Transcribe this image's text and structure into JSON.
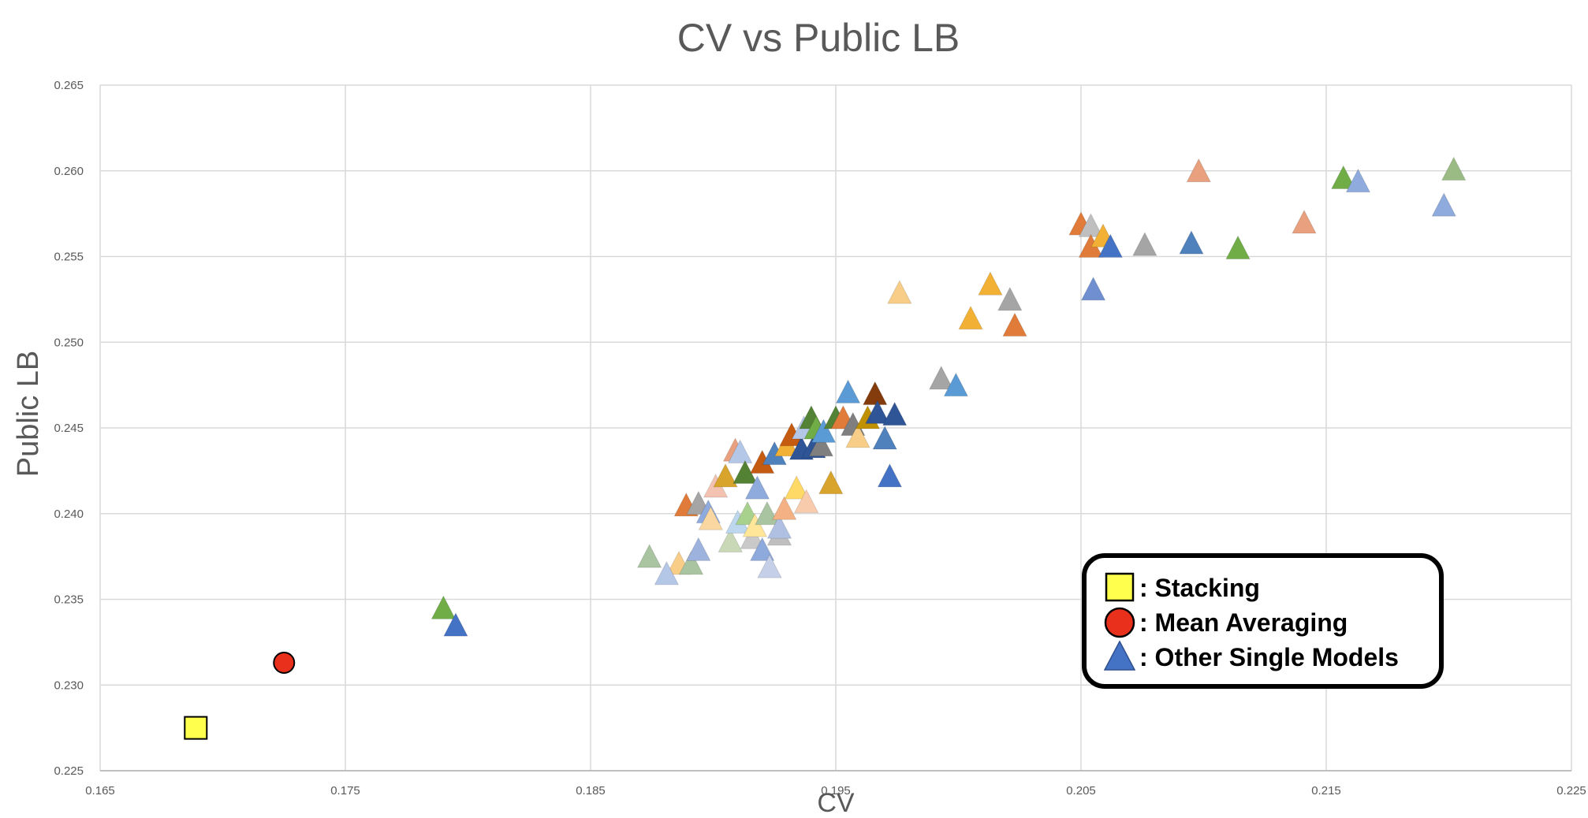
{
  "chart_data": {
    "type": "scatter",
    "title": "CV vs Public LB",
    "xlabel": "CV",
    "ylabel": "Public LB",
    "xlim": [
      0.165,
      0.225
    ],
    "ylim": [
      0.225,
      0.265
    ],
    "x_ticks": [
      "0.165",
      "0.175",
      "0.185",
      "0.195",
      "0.205",
      "0.215",
      "0.225"
    ],
    "y_ticks": [
      "0.225",
      "0.230",
      "0.235",
      "0.240",
      "0.245",
      "0.250",
      "0.255",
      "0.260",
      "0.265"
    ],
    "grid": true,
    "legend": {
      "placement": "bottom-right",
      "entries": [
        {
          "marker": "square",
          "color": "#FFFF4D",
          "label": ": Stacking"
        },
        {
          "marker": "circle",
          "color": "#E8301C",
          "label": ": Mean Averaging"
        },
        {
          "marker": "triangle",
          "color": "#4472C4",
          "label": ": Other Single Models"
        }
      ]
    },
    "series": [
      {
        "name": ": Stacking",
        "marker": "square",
        "color": "#FFFF4D",
        "points": [
          {
            "x": 0.1689,
            "y": 0.2275
          }
        ]
      },
      {
        "name": ": Mean Averaging",
        "marker": "circle",
        "color": "#E8301C",
        "points": [
          {
            "x": 0.1725,
            "y": 0.2313
          }
        ]
      },
      {
        "name": ": Other Single Models",
        "marker": "triangle",
        "points": [
          {
            "x": 0.179,
            "y": 0.2345,
            "color": "#70AD47"
          },
          {
            "x": 0.1795,
            "y": 0.2335,
            "color": "#4472C4"
          },
          {
            "x": 0.1874,
            "y": 0.2375,
            "color": "#A9C4A0"
          },
          {
            "x": 0.1886,
            "y": 0.2371,
            "color": "#F7CD87"
          },
          {
            "x": 0.1881,
            "y": 0.2365,
            "color": "#B4C7E7"
          },
          {
            "x": 0.1891,
            "y": 0.2371,
            "color": "#A9C4A0"
          },
          {
            "x": 0.1894,
            "y": 0.2379,
            "color": "#9DB3DE"
          },
          {
            "x": 0.1889,
            "y": 0.2405,
            "color": "#E07B39"
          },
          {
            "x": 0.1894,
            "y": 0.2406,
            "color": "#A5A5A5"
          },
          {
            "x": 0.1898,
            "y": 0.2401,
            "color": "#8FAADC"
          },
          {
            "x": 0.1899,
            "y": 0.2397,
            "color": "#FAD7A0"
          },
          {
            "x": 0.1901,
            "y": 0.2416,
            "color": "#F4C2B0"
          },
          {
            "x": 0.1905,
            "y": 0.2422,
            "color": "#D9A42C"
          },
          {
            "x": 0.1907,
            "y": 0.2384,
            "color": "#C9D8B6"
          },
          {
            "x": 0.191,
            "y": 0.2395,
            "color": "#BDD7EE"
          },
          {
            "x": 0.1909,
            "y": 0.2437,
            "color": "#E8A07E"
          },
          {
            "x": 0.1911,
            "y": 0.2436,
            "color": "#B4C7E7"
          },
          {
            "x": 0.1913,
            "y": 0.2424,
            "color": "#548235"
          },
          {
            "x": 0.1914,
            "y": 0.24,
            "color": "#A9D18E"
          },
          {
            "x": 0.1916,
            "y": 0.2386,
            "color": "#C9C9C9"
          },
          {
            "x": 0.1917,
            "y": 0.2393,
            "color": "#FFE699"
          },
          {
            "x": 0.1918,
            "y": 0.2415,
            "color": "#8FAADC"
          },
          {
            "x": 0.192,
            "y": 0.243,
            "color": "#C55A11"
          },
          {
            "x": 0.192,
            "y": 0.2379,
            "color": "#8EA9DB"
          },
          {
            "x": 0.1922,
            "y": 0.24,
            "color": "#A9C4A0"
          },
          {
            "x": 0.1923,
            "y": 0.2369,
            "color": "#C5CFE8"
          },
          {
            "x": 0.1925,
            "y": 0.2435,
            "color": "#4F81BD"
          },
          {
            "x": 0.1927,
            "y": 0.2388,
            "color": "#BFBFBF"
          },
          {
            "x": 0.1927,
            "y": 0.2392,
            "color": "#AFC0E3"
          },
          {
            "x": 0.1929,
            "y": 0.2403,
            "color": "#F4B183"
          },
          {
            "x": 0.193,
            "y": 0.244,
            "color": "#F2B134"
          },
          {
            "x": 0.1932,
            "y": 0.2446,
            "color": "#C55A11"
          },
          {
            "x": 0.1934,
            "y": 0.2415,
            "color": "#FFD966"
          },
          {
            "x": 0.1936,
            "y": 0.2438,
            "color": "#2F5597"
          },
          {
            "x": 0.1937,
            "y": 0.245,
            "color": "#B4C7E7"
          },
          {
            "x": 0.1938,
            "y": 0.2407,
            "color": "#F8CBAD"
          },
          {
            "x": 0.194,
            "y": 0.2456,
            "color": "#548235"
          },
          {
            "x": 0.1941,
            "y": 0.2439,
            "color": "#2F5597"
          },
          {
            "x": 0.1942,
            "y": 0.245,
            "color": "#70AD47"
          },
          {
            "x": 0.1944,
            "y": 0.244,
            "color": "#7F7F7F"
          },
          {
            "x": 0.1945,
            "y": 0.2448,
            "color": "#5B9BD5"
          },
          {
            "x": 0.1948,
            "y": 0.2418,
            "color": "#D9A42C"
          },
          {
            "x": 0.195,
            "y": 0.2456,
            "color": "#548235"
          },
          {
            "x": 0.1953,
            "y": 0.2456,
            "color": "#E07B39"
          },
          {
            "x": 0.1955,
            "y": 0.2471,
            "color": "#5B9BD5"
          },
          {
            "x": 0.1957,
            "y": 0.2452,
            "color": "#7F7F7F"
          },
          {
            "x": 0.1959,
            "y": 0.2445,
            "color": "#F7CD87"
          },
          {
            "x": 0.1963,
            "y": 0.2456,
            "color": "#BF9000"
          },
          {
            "x": 0.1966,
            "y": 0.247,
            "color": "#843C0C"
          },
          {
            "x": 0.1967,
            "y": 0.2459,
            "color": "#2F5597"
          },
          {
            "x": 0.197,
            "y": 0.2444,
            "color": "#4F81BD"
          },
          {
            "x": 0.1972,
            "y": 0.2422,
            "color": "#4472C4"
          },
          {
            "x": 0.1974,
            "y": 0.2458,
            "color": "#2F5597"
          },
          {
            "x": 0.1976,
            "y": 0.2529,
            "color": "#F7CD87"
          },
          {
            "x": 0.1993,
            "y": 0.2479,
            "color": "#A5A5A5"
          },
          {
            "x": 0.1999,
            "y": 0.2475,
            "color": "#5B9BD5"
          },
          {
            "x": 0.2005,
            "y": 0.2514,
            "color": "#F2B134"
          },
          {
            "x": 0.2013,
            "y": 0.2534,
            "color": "#F2B134"
          },
          {
            "x": 0.2021,
            "y": 0.2525,
            "color": "#A5A5A5"
          },
          {
            "x": 0.2023,
            "y": 0.251,
            "color": "#E07B39"
          },
          {
            "x": 0.205,
            "y": 0.2569,
            "color": "#E07B39"
          },
          {
            "x": 0.2054,
            "y": 0.2568,
            "color": "#BFBFBF"
          },
          {
            "x": 0.2054,
            "y": 0.2556,
            "color": "#E07B39"
          },
          {
            "x": 0.2055,
            "y": 0.2531,
            "color": "#6F8FD0"
          },
          {
            "x": 0.2059,
            "y": 0.2562,
            "color": "#F2B134"
          },
          {
            "x": 0.2062,
            "y": 0.2556,
            "color": "#4472C4"
          },
          {
            "x": 0.2076,
            "y": 0.2557,
            "color": "#A5A5A5"
          },
          {
            "x": 0.2095,
            "y": 0.2558,
            "color": "#4F81BD"
          },
          {
            "x": 0.2098,
            "y": 0.26,
            "color": "#E8A07E"
          },
          {
            "x": 0.2114,
            "y": 0.2555,
            "color": "#70AD47"
          },
          {
            "x": 0.2141,
            "y": 0.257,
            "color": "#E8A07E"
          },
          {
            "x": 0.2157,
            "y": 0.2596,
            "color": "#70AD47"
          },
          {
            "x": 0.2163,
            "y": 0.2594,
            "color": "#8FAADC"
          },
          {
            "x": 0.2198,
            "y": 0.258,
            "color": "#8FAADC"
          },
          {
            "x": 0.2202,
            "y": 0.2601,
            "color": "#9BBB85"
          }
        ]
      }
    ]
  }
}
